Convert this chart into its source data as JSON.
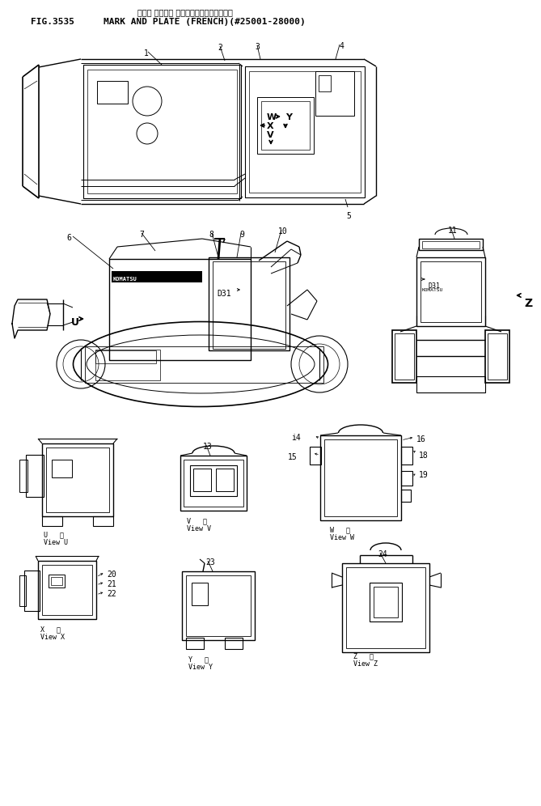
{
  "title_japanese": "マーク オヨビー プレート（フランスコー）",
  "title_english": "MARK AND PLATE (FRENCH)(#25001-28000)",
  "fig_number": "FIG.3535",
  "background_color": "#ffffff",
  "line_color": "#000000",
  "text_color": "#000000",
  "fig_width": 6.69,
  "fig_height": 9.96,
  "dpi": 100
}
